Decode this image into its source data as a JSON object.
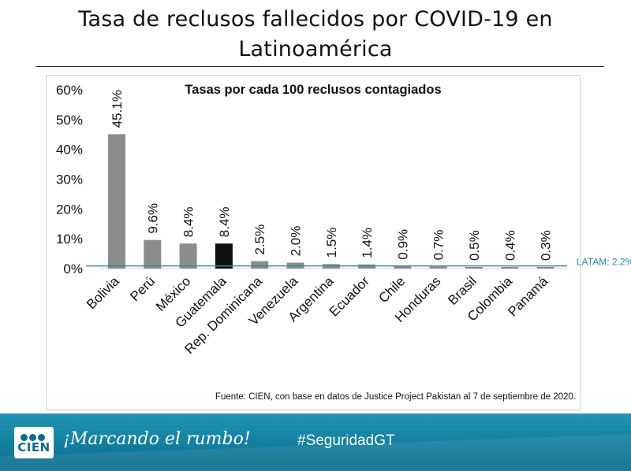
{
  "page": {
    "title": "Tasa de reclusos fallecidos por COVID-19 en Latinoamérica",
    "source": "Fuente: CIEN, con base en datos de Justice Project Pakistan al 7 de septiembre de 2020."
  },
  "footer": {
    "logo_text": "CIEN",
    "slogan": "¡Marcando el rumbo!",
    "hashtag": "#SeguridadGT"
  },
  "colors": {
    "bar": "#8c8c8c",
    "highlight_bar": "#111111",
    "reference_line": "#2e8a99",
    "footer": "#137e9e"
  },
  "chart_data": {
    "type": "bar",
    "title": "Tasas por cada 100 reclusos contagiados",
    "xlabel": "",
    "ylabel": "",
    "ylim": [
      0,
      60
    ],
    "yticks": [
      0,
      10,
      20,
      30,
      40,
      50,
      60
    ],
    "ytick_labels": [
      "0%",
      "10%",
      "20%",
      "30%",
      "40%",
      "50%",
      "60%"
    ],
    "categories": [
      "Bolivia",
      "Perú",
      "México",
      "Guatemala",
      "Rep. Dominicana",
      "Venezuela",
      "Argentina",
      "Ecuador",
      "Chile",
      "Honduras",
      "Brasil",
      "Colombia",
      "Panamá"
    ],
    "values": [
      45.1,
      9.6,
      8.4,
      8.4,
      2.5,
      2.0,
      1.5,
      1.4,
      0.9,
      0.7,
      0.5,
      0.4,
      0.3
    ],
    "value_labels": [
      "45.1%",
      "9.6%",
      "8.4%",
      "8.4%",
      "2.5%",
      "2.0%",
      "1.5%",
      "1.4%",
      "0.9%",
      "0.7%",
      "0.5%",
      "0.4%",
      "0.3%"
    ],
    "highlight": [
      "Guatemala"
    ],
    "reference_line": {
      "value": 2.2,
      "label": "LATAM: 2.2%"
    }
  }
}
